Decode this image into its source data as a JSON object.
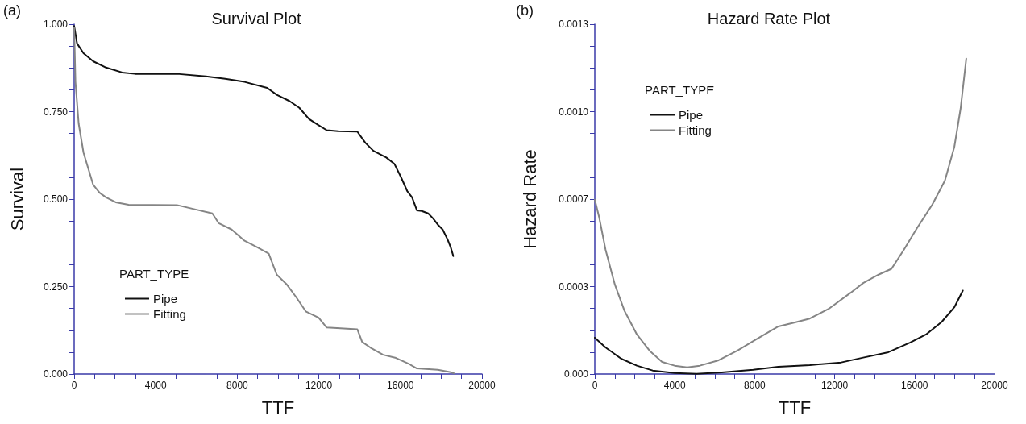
{
  "chart_data": [
    {
      "type": "line",
      "title": "Survival Plot",
      "xlabel": "TTF",
      "ylabel": "Survival",
      "legend_title": "PART_TYPE",
      "legend": "bottom left",
      "grid": false,
      "annotations": [
        "(a)"
      ],
      "xlim": [
        0,
        20000
      ],
      "xticks": [
        0,
        {
          "value": 1000,
          "label": null
        },
        {
          "value": 2000,
          "label": null
        },
        {
          "value": 3000,
          "label": null
        },
        4000,
        {
          "value": 5000,
          "label": null
        },
        {
          "value": 6000,
          "label": null
        },
        {
          "value": 7000,
          "label": null
        },
        8000,
        {
          "value": 9000,
          "label": null
        },
        {
          "value": 10000,
          "label": null
        },
        {
          "value": 11000,
          "label": null
        },
        12000,
        {
          "value": 13000,
          "label": null
        },
        {
          "value": 14000,
          "label": null
        },
        {
          "value": 15000,
          "label": null
        },
        16000,
        {
          "value": 17000,
          "label": null
        },
        {
          "value": 18000,
          "label": null
        },
        {
          "value": 19000,
          "label": null
        },
        20000
      ],
      "ylim": [
        0,
        1
      ],
      "yticks": [
        {
          "value": 0,
          "label": "0.000"
        },
        {
          "value": 0.0625,
          "label": null
        },
        {
          "value": 0.125,
          "label": null
        },
        {
          "value": 0.1875,
          "label": null
        },
        {
          "value": 0.25,
          "label": "0.250"
        },
        {
          "value": 0.3125,
          "label": null
        },
        {
          "value": 0.375,
          "label": null
        },
        {
          "value": 0.4375,
          "label": null
        },
        {
          "value": 0.5,
          "label": "0.500"
        },
        {
          "value": 0.5625,
          "label": null
        },
        {
          "value": 0.625,
          "label": null
        },
        {
          "value": 0.6875,
          "label": null
        },
        {
          "value": 0.75,
          "label": "0.750"
        },
        {
          "value": 0.8125,
          "label": null
        },
        {
          "value": 0.875,
          "label": null
        },
        {
          "value": 0.9375,
          "label": null
        },
        {
          "value": 1,
          "label": "1.000"
        }
      ],
      "series": [
        {
          "name": "Pipe",
          "color": "#111111",
          "x": [
            0,
            142,
            458,
            932,
            1564,
            2354,
            2986,
            5040,
            6461,
            7409,
            8357,
            9463,
            9937,
            10569,
            11043,
            11517,
            11991,
            12386,
            12938,
            13886,
            14281,
            14676,
            15308,
            15703,
            16019,
            16335,
            16572,
            16809,
            17046,
            17362,
            17599,
            17836,
            18073,
            18310,
            18468,
            18594
          ],
          "values": [
            0.995,
            0.945,
            0.917,
            0.894,
            0.876,
            0.862,
            0.858,
            0.858,
            0.851,
            0.844,
            0.835,
            0.818,
            0.798,
            0.78,
            0.761,
            0.729,
            0.711,
            0.697,
            0.694,
            0.693,
            0.661,
            0.638,
            0.619,
            0.601,
            0.564,
            0.523,
            0.505,
            0.468,
            0.466,
            0.459,
            0.445,
            0.427,
            0.413,
            0.385,
            0.362,
            0.337
          ]
        },
        {
          "name": "Fitting",
          "color": "#858585",
          "x": [
            0,
            63,
            221,
            458,
            695,
            932,
            1248,
            1564,
            2038,
            2670,
            5040,
            5830,
            6777,
            7093,
            7725,
            8357,
            8989,
            9542,
            9937,
            10411,
            10885,
            11359,
            11991,
            12386,
            13886,
            14123,
            14518,
            15150,
            15782,
            16414,
            16809,
            17836,
            18468,
            18626
          ],
          "values": [
            0.991,
            0.835,
            0.716,
            0.633,
            0.587,
            0.541,
            0.518,
            0.505,
            0.491,
            0.484,
            0.483,
            0.472,
            0.459,
            0.431,
            0.413,
            0.381,
            0.362,
            0.344,
            0.284,
            0.257,
            0.22,
            0.179,
            0.161,
            0.133,
            0.128,
            0.092,
            0.076,
            0.055,
            0.046,
            0.029,
            0.016,
            0.012,
            0.005,
            0.002
          ]
        }
      ]
    },
    {
      "type": "line",
      "title": "Hazard Rate Plot",
      "xlabel": "TTF",
      "ylabel": "Hazard Rate",
      "legend_title": "PART_TYPE",
      "legend": "top left",
      "grid": false,
      "annotations": [
        "(b)"
      ],
      "xlim": [
        0,
        20000
      ],
      "xticks": [
        0,
        {
          "value": 1000,
          "label": null
        },
        {
          "value": 2000,
          "label": null
        },
        {
          "value": 3000,
          "label": null
        },
        4000,
        {
          "value": 5000,
          "label": null
        },
        {
          "value": 6000,
          "label": null
        },
        {
          "value": 7000,
          "label": null
        },
        8000,
        {
          "value": 9000,
          "label": null
        },
        {
          "value": 10000,
          "label": null
        },
        {
          "value": 11000,
          "label": null
        },
        12000,
        {
          "value": 13000,
          "label": null
        },
        {
          "value": 14000,
          "label": null
        },
        {
          "value": 15000,
          "label": null
        },
        16000,
        {
          "value": 17000,
          "label": null
        },
        {
          "value": 18000,
          "label": null
        },
        {
          "value": 19000,
          "label": null
        },
        20000
      ],
      "ylim": [
        0,
        0.0013
      ],
      "yticks": [
        {
          "value": 0,
          "label": "0.000"
        },
        {
          "value": 8.125e-05,
          "label": null
        },
        {
          "value": 0.0001625,
          "label": null
        },
        {
          "value": 0.00024375,
          "label": null
        },
        {
          "value": 0.000325,
          "label": "0.0003"
        },
        {
          "value": 0.00040625,
          "label": null
        },
        {
          "value": 0.0004875,
          "label": null
        },
        {
          "value": 0.00056875,
          "label": null
        },
        {
          "value": 0.00065,
          "label": "0.0007"
        },
        {
          "value": 0.00073125,
          "label": null
        },
        {
          "value": 0.0008125,
          "label": null
        },
        {
          "value": 0.00089375,
          "label": null
        },
        {
          "value": 0.000975,
          "label": "0.0010"
        },
        {
          "value": 0.00105625,
          "label": null
        },
        {
          "value": 0.0011375,
          "label": null
        },
        {
          "value": 0.00121875,
          "label": null
        },
        {
          "value": 0.0013,
          "label": "0.0013"
        }
      ],
      "series": [
        {
          "name": "Pipe",
          "color": "#111111",
          "x": [
            0,
            535,
            1321,
            2107,
            2893,
            3994,
            5094,
            6352,
            7925,
            9182,
            10755,
            12327,
            13428,
            14686,
            15786,
            16572,
            17358,
            17987,
            18412
          ],
          "values": [
            0.000135,
            9.9e-05,
            5.7e-05,
            3.1e-05,
            1.3e-05,
            4e-06,
            1e-06,
            6e-06,
            1.6e-05,
            2.7e-05,
            3.3e-05,
            4.3e-05,
            6.1e-05,
            8.1e-05,
            0.000117,
            0.000147,
            0.000194,
            0.000248,
            0.00031
          ]
        },
        {
          "name": "Fitting",
          "color": "#858585",
          "x": [
            0,
            220,
            535,
            1006,
            1478,
            2107,
            2736,
            3365,
            3994,
            4623,
            5252,
            6195,
            7138,
            8082,
            9182,
            9969,
            10755,
            11698,
            12799,
            13428,
            14214,
            14843,
            15472,
            16101,
            16887,
            17516,
            17987,
            18302,
            18585
          ],
          "values": [
            0.000648,
            0.000582,
            0.000463,
            0.000332,
            0.000236,
            0.000147,
            8.7e-05,
            4.5e-05,
            3.1e-05,
            2.5e-05,
            3.1e-05,
            5.1e-05,
            8.7e-05,
            0.000129,
            0.000177,
            0.000191,
            0.000206,
            0.000242,
            0.000302,
            0.000338,
            0.00037,
            0.000391,
            0.000463,
            0.00054,
            0.00063,
            0.000719,
            0.000844,
            0.000987,
            0.001172
          ]
        }
      ]
    }
  ]
}
